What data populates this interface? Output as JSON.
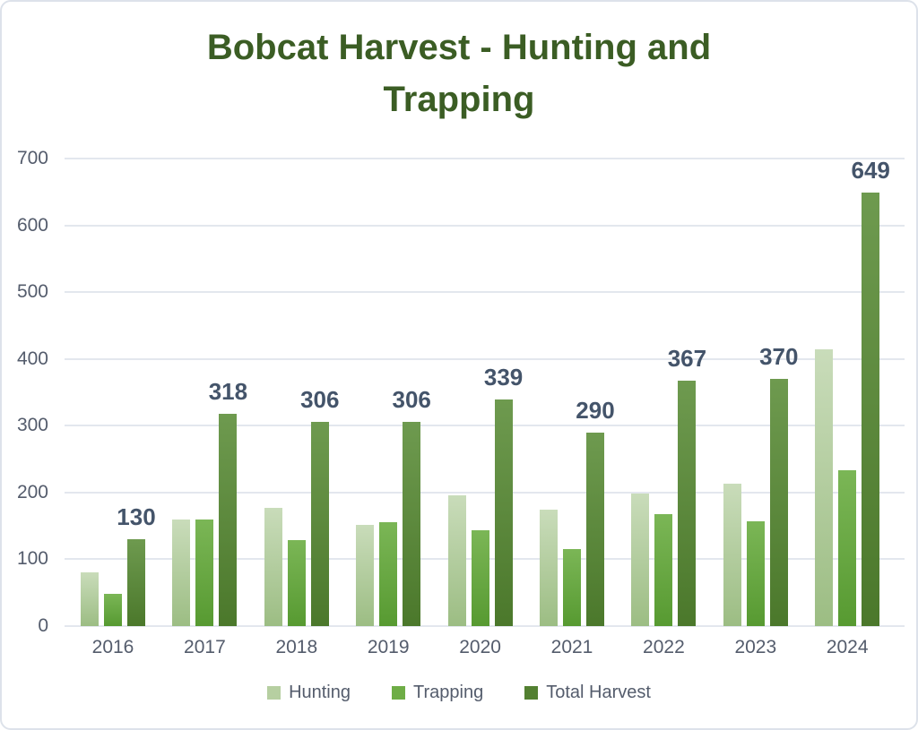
{
  "chart_data": {
    "type": "bar",
    "title": "Bobcat Harvest - Hunting and Trapping",
    "title_lines": [
      "Bobcat Harvest - Hunting and",
      "Trapping"
    ],
    "categories": [
      "2016",
      "2017",
      "2018",
      "2019",
      "2020",
      "2021",
      "2022",
      "2023",
      "2024"
    ],
    "series": [
      {
        "key": "hunting",
        "name": "Hunting",
        "values": [
          81,
          159,
          177,
          151,
          196,
          174,
          199,
          213,
          415
        ]
      },
      {
        "key": "trapping",
        "name": "Trapping",
        "values": [
          49,
          159,
          129,
          155,
          143,
          116,
          168,
          157,
          234
        ]
      },
      {
        "key": "total",
        "name": "Total Harvest",
        "values": [
          130,
          318,
          306,
          306,
          339,
          290,
          367,
          370,
          649
        ]
      }
    ],
    "data_labels": {
      "series": "Total Harvest",
      "values": [
        "130",
        "318",
        "306",
        "306",
        "339",
        "290",
        "367",
        "370",
        "649"
      ]
    },
    "y_ticks": [
      0,
      100,
      200,
      300,
      400,
      500,
      600,
      700
    ],
    "ylim": [
      0,
      700
    ],
    "grid": true,
    "legend_position": "bottom",
    "colors": {
      "hunting": {
        "top": "#c9dcba",
        "bottom": "#9cbd83",
        "legend": "#b6cfa1"
      },
      "trapping": {
        "top": "#7bb656",
        "bottom": "#579a31",
        "legend": "#6ead46"
      },
      "total": {
        "top": "#6e9a4f",
        "bottom": "#4b782b",
        "legend": "#538031"
      },
      "title": "#3b5d24",
      "data_label": "#44546a",
      "axis_text": "#545c6c",
      "gridline": "#e3e7ee",
      "frame_border": "#dde2ea"
    }
  }
}
